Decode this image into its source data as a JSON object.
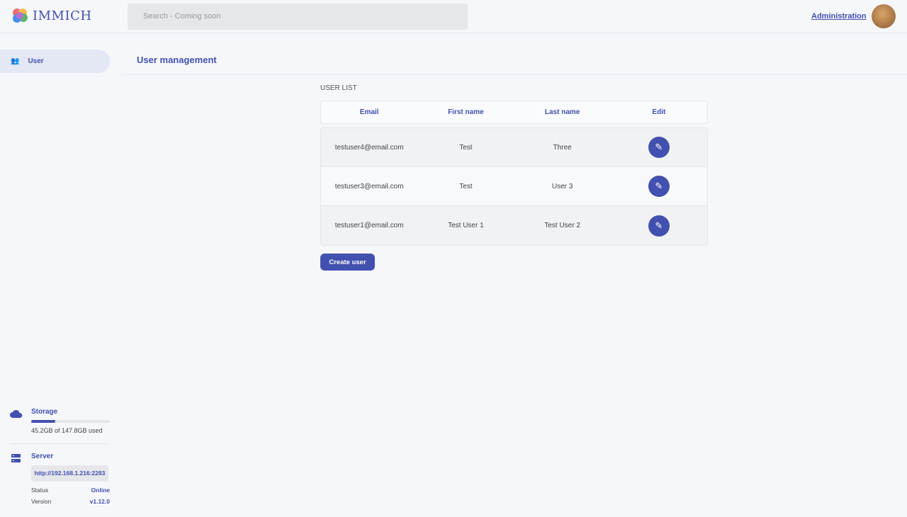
{
  "app": {
    "name": "IMMICH",
    "search_placeholder": "Search - Coming soon",
    "admin_link": "Administration"
  },
  "sidebar": {
    "items": [
      {
        "label": "User",
        "icon": "users-icon"
      }
    ]
  },
  "page": {
    "title": "User management",
    "section": "USER LIST"
  },
  "table": {
    "headers": [
      "Email",
      "First name",
      "Last name",
      "Edit"
    ],
    "rows": [
      {
        "email": "testuser4@email.com",
        "first": "Test",
        "last": "Three"
      },
      {
        "email": "testuser3@email.com",
        "first": "Test",
        "last": "User 3"
      },
      {
        "email": "testuser1@email.com",
        "first": "Test User 1",
        "last": "Test User 2"
      }
    ]
  },
  "create_label": "Create user",
  "storage": {
    "label": "Storage",
    "used_text": "45.2GB of 147.8GB used",
    "used_fraction": 0.306
  },
  "server": {
    "label": "Server",
    "url": "http://192.168.1.216:2283",
    "status_label": "Status",
    "status": "Online",
    "version_label": "Version",
    "version": "v1.12.0"
  },
  "colors": {
    "accent": "#4250af"
  }
}
